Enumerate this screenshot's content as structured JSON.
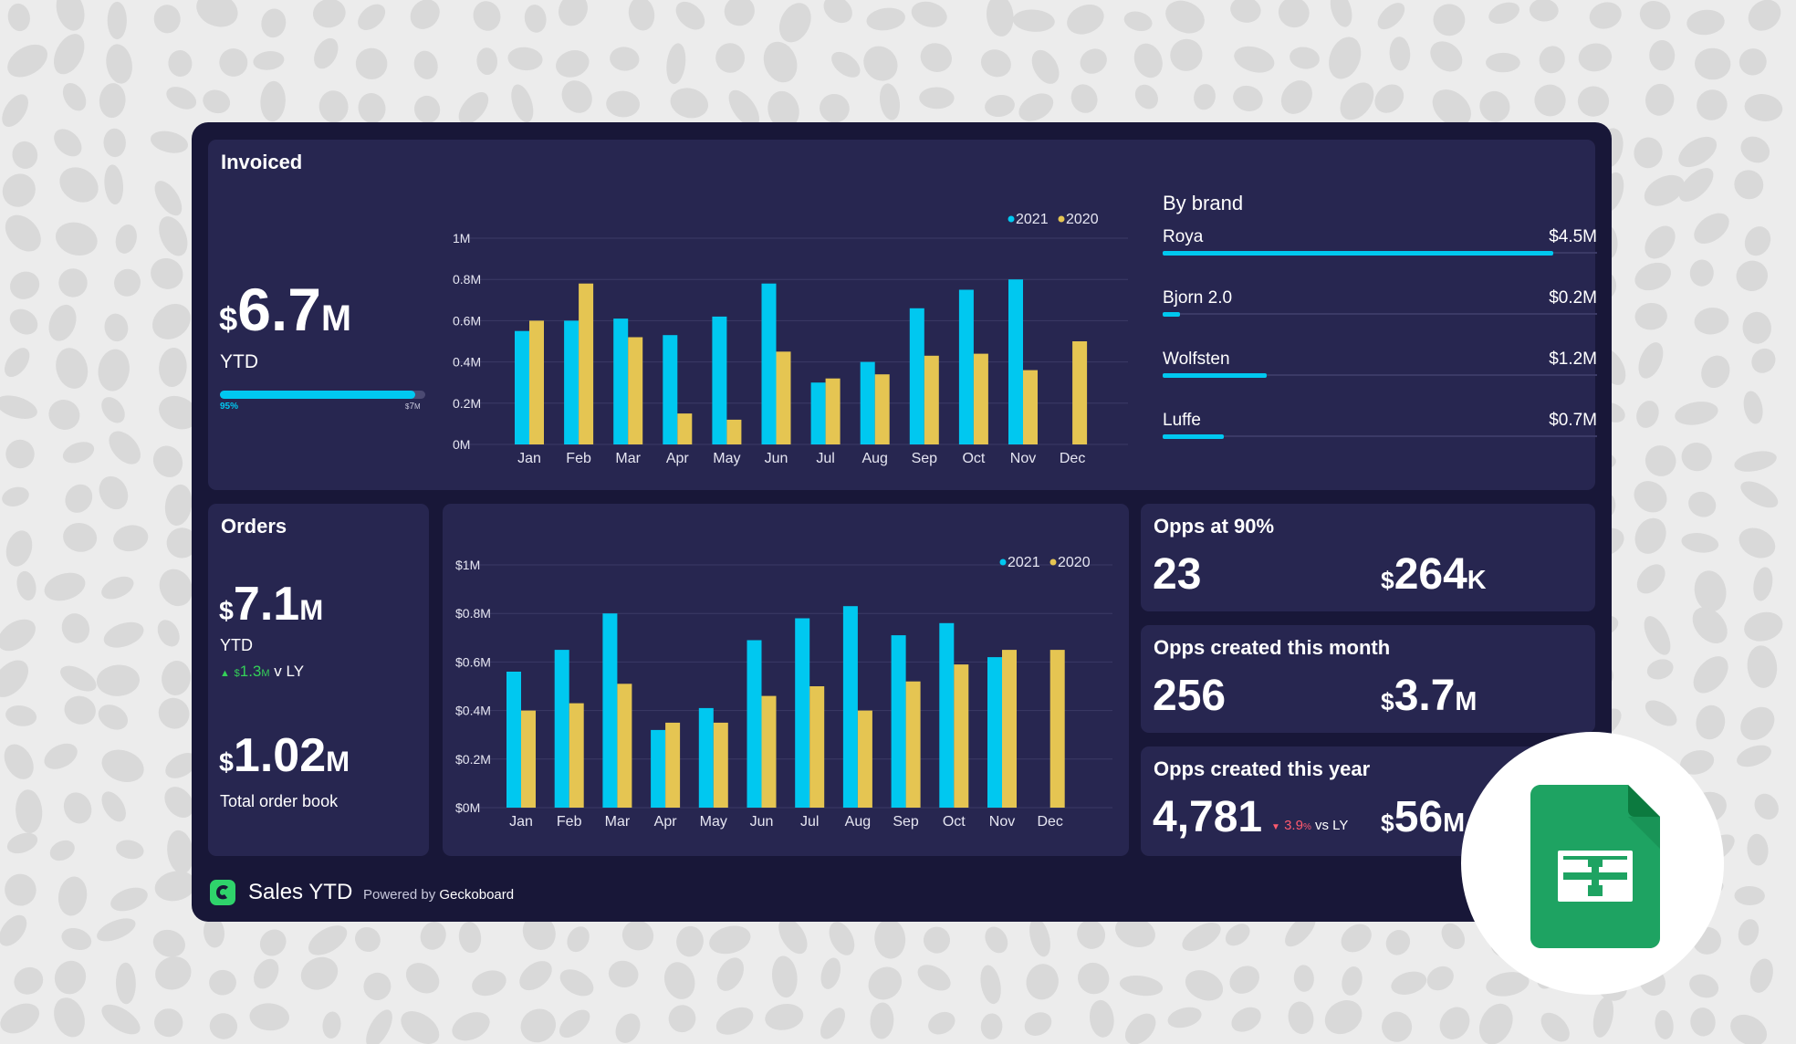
{
  "dashboard": {
    "title": "Sales YTD",
    "powered_by_prefix": "Powered by",
    "powered_by_brand": "Geckoboard"
  },
  "invoiced": {
    "title": "Invoiced",
    "currency": "$",
    "value": "6.7",
    "suffix": "M",
    "label": "YTD",
    "progress_label": "95%",
    "progress_fraction": 0.95,
    "goal_currency": "$",
    "goal_value": "7",
    "goal_suffix": "M"
  },
  "by_brand": {
    "title": "By brand",
    "max_value": 4.5,
    "items": [
      {
        "name": "Roya",
        "value": "$4.5M",
        "amount": 4.5
      },
      {
        "name": "Bjorn 2.0",
        "value": "$0.2M",
        "amount": 0.2
      },
      {
        "name": "Wolfsten",
        "value": "$1.2M",
        "amount": 1.2
      },
      {
        "name": "Luffe",
        "value": "$0.7M",
        "amount": 0.7
      }
    ]
  },
  "orders": {
    "title": "Orders",
    "currency": "$",
    "value": "7.1",
    "suffix": "M",
    "label": "YTD",
    "delta_currency": "$",
    "delta_value": "1.3",
    "delta_suffix": "M",
    "delta_label": "v LY",
    "order_book_currency": "$",
    "order_book_value": "1.02",
    "order_book_suffix": "M",
    "order_book_label": "Total order book"
  },
  "opps90": {
    "title": "Opps at 90%",
    "count": "23",
    "currency": "$",
    "value": "264",
    "suffix": "K"
  },
  "opps_month": {
    "title": "Opps created this month",
    "count": "256",
    "currency": "$",
    "value": "3.7",
    "suffix": "M"
  },
  "opps_year": {
    "title": "Opps created this year",
    "count": "4,781",
    "delta_value": "3.9",
    "delta_unit": "%",
    "delta_label": "vs LY",
    "currency": "$",
    "value": "56",
    "suffix": "M"
  },
  "colors": {
    "series_2021": "#00c8f0",
    "series_2020": "#e5c552",
    "up": "#34d058",
    "down": "#ff5a6e",
    "sheets_green": "#1ea362"
  },
  "chart_data": [
    {
      "type": "bar",
      "id": "invoiced-chart",
      "title": "",
      "categories": [
        "Jan",
        "Feb",
        "Mar",
        "Apr",
        "May",
        "Jun",
        "Jul",
        "Aug",
        "Sep",
        "Oct",
        "Nov",
        "Dec"
      ],
      "series": [
        {
          "name": "2021",
          "values": [
            0.55,
            0.6,
            0.61,
            0.53,
            0.62,
            0.78,
            0.3,
            0.4,
            0.66,
            0.75,
            0.8,
            null
          ]
        },
        {
          "name": "2020",
          "values": [
            0.6,
            0.78,
            0.52,
            0.15,
            0.12,
            0.45,
            0.32,
            0.34,
            0.43,
            0.44,
            0.36,
            0.5
          ]
        }
      ],
      "yticks": [
        "0M",
        "0.2M",
        "0.4M",
        "0.6M",
        "0.8M",
        "1M"
      ],
      "ylim": [
        0,
        1
      ],
      "legend": "top-right",
      "grid": true
    },
    {
      "type": "bar",
      "id": "orders-chart",
      "title": "",
      "categories": [
        "Jan",
        "Feb",
        "Mar",
        "Apr",
        "May",
        "Jun",
        "Jul",
        "Aug",
        "Sep",
        "Oct",
        "Nov",
        "Dec"
      ],
      "series": [
        {
          "name": "2021",
          "values": [
            0.56,
            0.65,
            0.8,
            0.32,
            0.41,
            0.69,
            0.78,
            0.83,
            0.71,
            0.76,
            0.62,
            null
          ]
        },
        {
          "name": "2020",
          "values": [
            0.4,
            0.43,
            0.51,
            0.35,
            0.35,
            0.46,
            0.5,
            0.4,
            0.52,
            0.59,
            0.65,
            0.65
          ]
        }
      ],
      "yticks": [
        "$0M",
        "$0.2M",
        "$0.4M",
        "$0.6M",
        "$0.8M",
        "$1M"
      ],
      "ylim": [
        0,
        1
      ],
      "legend": "top-right",
      "grid": true
    }
  ]
}
